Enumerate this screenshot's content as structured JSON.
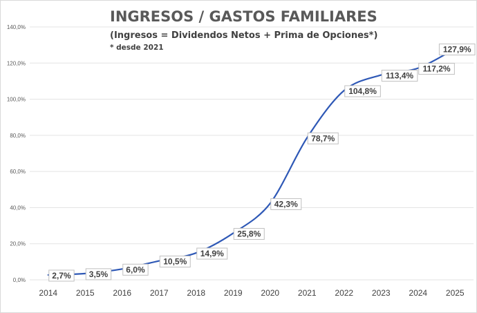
{
  "chart_data": {
    "type": "line",
    "title": "INGRESOS / GASTOS FAMILIARES",
    "subtitle": "(Ingresos = Dividendos Netos + Prima de Opciones*)",
    "note": "* desde 2021",
    "categories": [
      "2014",
      "2015",
      "2016",
      "2017",
      "2018",
      "2019",
      "2020",
      "2021",
      "2022",
      "2023",
      "2024",
      "2025"
    ],
    "series": [
      {
        "values": [
          2.7,
          3.5,
          6.0,
          10.5,
          14.9,
          25.8,
          42.3,
          78.7,
          104.8,
          113.4,
          117.2,
          127.9
        ],
        "labels": [
          "2,7%",
          "3,5%",
          "6,0%",
          "10,5%",
          "14,9%",
          "25,8%",
          "42,3%",
          "78,7%",
          "104,8%",
          "113,4%",
          "117,2%",
          "127,9%"
        ]
      }
    ],
    "yticks": [
      0,
      20,
      40,
      60,
      80,
      100,
      120,
      140
    ],
    "ytick_labels": [
      "0,0%",
      "20,0%",
      "40,0%",
      "60,0%",
      "80,0%",
      "100,0%",
      "120,0%",
      "140,0%"
    ],
    "ylim": [
      0,
      140
    ],
    "grid": true,
    "line_color": "#2e58b6"
  }
}
